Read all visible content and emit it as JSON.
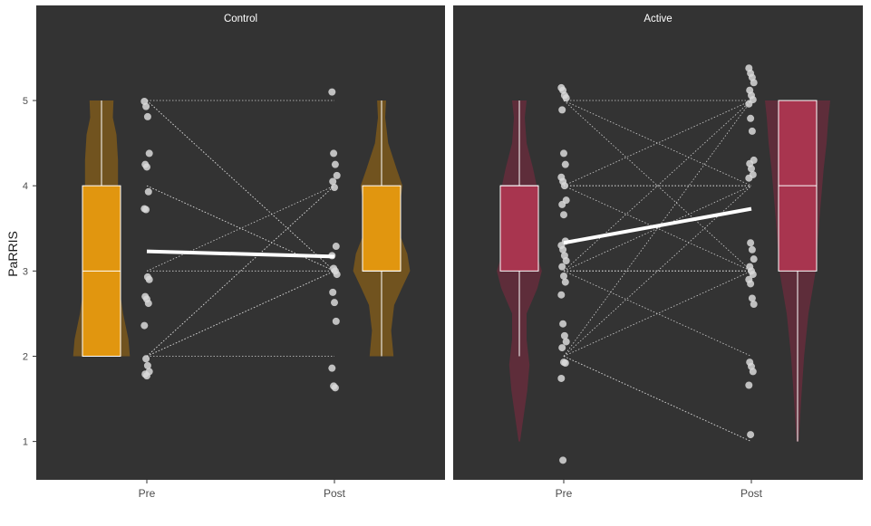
{
  "chart_data": {
    "type": "violin-box-scatter",
    "ylabel": "PaRRIS",
    "ylim": [
      0.55,
      5.85
    ],
    "yticks": [
      1,
      2,
      3,
      4,
      5
    ],
    "categories": [
      "Pre",
      "Post"
    ],
    "panel_background": "#333333",
    "panels": [
      {
        "title": "Control",
        "fill": "#E1960F",
        "violin_fill": "#71531F",
        "means": {
          "Pre": 3.23,
          "Post": 3.17
        },
        "box": {
          "Pre": {
            "lower": 2.0,
            "q1": 2.0,
            "median": 3.0,
            "q3": 4.0,
            "upper": 5.0
          },
          "Post": {
            "lower": 2.0,
            "q1": 3.0,
            "median": 3.0,
            "q3": 4.0,
            "upper": 5.0
          }
        },
        "violin": {
          "Pre": {
            "y": [
              2.0,
              2.2,
              2.5,
              2.8,
              3.0,
              3.2,
              3.5,
              3.8,
              4.0,
              4.3,
              4.6,
              4.8,
              5.0
            ],
            "density": [
              0.95,
              0.9,
              0.72,
              0.6,
              0.6,
              0.56,
              0.5,
              0.5,
              0.55,
              0.55,
              0.5,
              0.38,
              0.4
            ]
          },
          "Post": {
            "y": [
              2.0,
              2.3,
              2.6,
              2.8,
              3.0,
              3.2,
              3.4,
              3.6,
              3.8,
              4.0,
              4.2,
              4.5,
              4.8,
              5.0
            ],
            "density": [
              0.4,
              0.32,
              0.42,
              0.68,
              0.95,
              0.86,
              0.64,
              0.55,
              0.62,
              0.7,
              0.5,
              0.22,
              0.12,
              0.15
            ]
          }
        },
        "points": {
          "Pre": [
            4.99,
            4.93,
            4.81,
            4.38,
            4.25,
            4.22,
            3.93,
            3.73,
            3.72,
            2.93,
            2.9,
            2.7,
            2.67,
            2.62,
            2.36,
            1.97,
            1.89,
            1.82,
            1.79,
            1.77
          ],
          "Post": [
            5.1,
            4.38,
            4.25,
            4.12,
            4.05,
            3.98,
            3.29,
            3.18,
            3.03,
            3.0,
            2.96,
            2.75,
            2.63,
            2.41,
            1.86,
            1.65,
            1.63
          ]
        },
        "lines": [
          [
            5,
            5
          ],
          [
            5,
            3
          ],
          [
            5,
            3
          ],
          [
            4,
            3
          ],
          [
            4,
            3
          ],
          [
            3,
            4
          ],
          [
            3,
            3
          ],
          [
            2,
            4
          ],
          [
            2,
            4
          ],
          [
            2,
            2
          ],
          [
            2,
            3
          ],
          [
            2,
            3
          ]
        ]
      },
      {
        "title": "Active",
        "fill": "#A8354F",
        "violin_fill": "#5E2D3A",
        "means": {
          "Pre": 3.33,
          "Post": 3.73
        },
        "box": {
          "Pre": {
            "lower": 2.0,
            "q1": 3.0,
            "median": 4.0,
            "q3": 4.0,
            "upper": 5.0
          },
          "Post": {
            "lower": 1.0,
            "q1": 3.0,
            "median": 4.0,
            "q3": 5.0,
            "upper": 5.0
          }
        },
        "violin": {
          "Pre": {
            "y": [
              1.0,
              1.3,
              1.6,
              1.9,
              2.2,
              2.5,
              2.8,
              3.0,
              3.2,
              3.5,
              3.8,
              4.0,
              4.2,
              4.5,
              4.8,
              5.0
            ],
            "density": [
              0.02,
              0.12,
              0.22,
              0.28,
              0.2,
              0.2,
              0.5,
              0.62,
              0.48,
              0.32,
              0.42,
              0.48,
              0.38,
              0.2,
              0.15,
              0.2
            ]
          },
          "Post": {
            "y": [
              1.0,
              1.5,
              2.0,
              2.5,
              2.8,
              3.0,
              3.3,
              3.6,
              3.9,
              4.2,
              4.5,
              4.8,
              5.0
            ],
            "density": [
              0.03,
              0.1,
              0.18,
              0.3,
              0.42,
              0.5,
              0.55,
              0.6,
              0.66,
              0.72,
              0.8,
              0.85,
              0.9
            ]
          }
        },
        "points": {
          "Pre": [
            5.15,
            5.12,
            5.06,
            5.03,
            4.89,
            4.38,
            4.25,
            4.1,
            4.05,
            4.0,
            3.83,
            3.78,
            3.66,
            3.35,
            3.3,
            3.25,
            3.18,
            3.12,
            3.05,
            2.94,
            2.87,
            2.72,
            2.38,
            2.24,
            2.17,
            2.1,
            1.93,
            1.92,
            1.74,
            0.78
          ],
          "Post": [
            5.38,
            5.32,
            5.27,
            5.21,
            5.12,
            5.06,
            5.01,
            4.96,
            4.79,
            4.64,
            4.3,
            4.26,
            4.2,
            4.13,
            4.09,
            3.33,
            3.25,
            3.14,
            3.05,
            3.0,
            2.96,
            2.9,
            2.85,
            2.68,
            2.61,
            1.93,
            1.88,
            1.82,
            1.66,
            1.08
          ]
        },
        "lines": [
          [
            5,
            5
          ],
          [
            5,
            4
          ],
          [
            5,
            3
          ],
          [
            4,
            5
          ],
          [
            4,
            4
          ],
          [
            4,
            3
          ],
          [
            4,
            4
          ],
          [
            3,
            5
          ],
          [
            3,
            4
          ],
          [
            3,
            3
          ],
          [
            3,
            2
          ],
          [
            3,
            3
          ],
          [
            2,
            5
          ],
          [
            2,
            4
          ],
          [
            2,
            3
          ],
          [
            2,
            1
          ],
          [
            2,
            1
          ],
          [
            3,
            3
          ]
        ]
      }
    ]
  }
}
